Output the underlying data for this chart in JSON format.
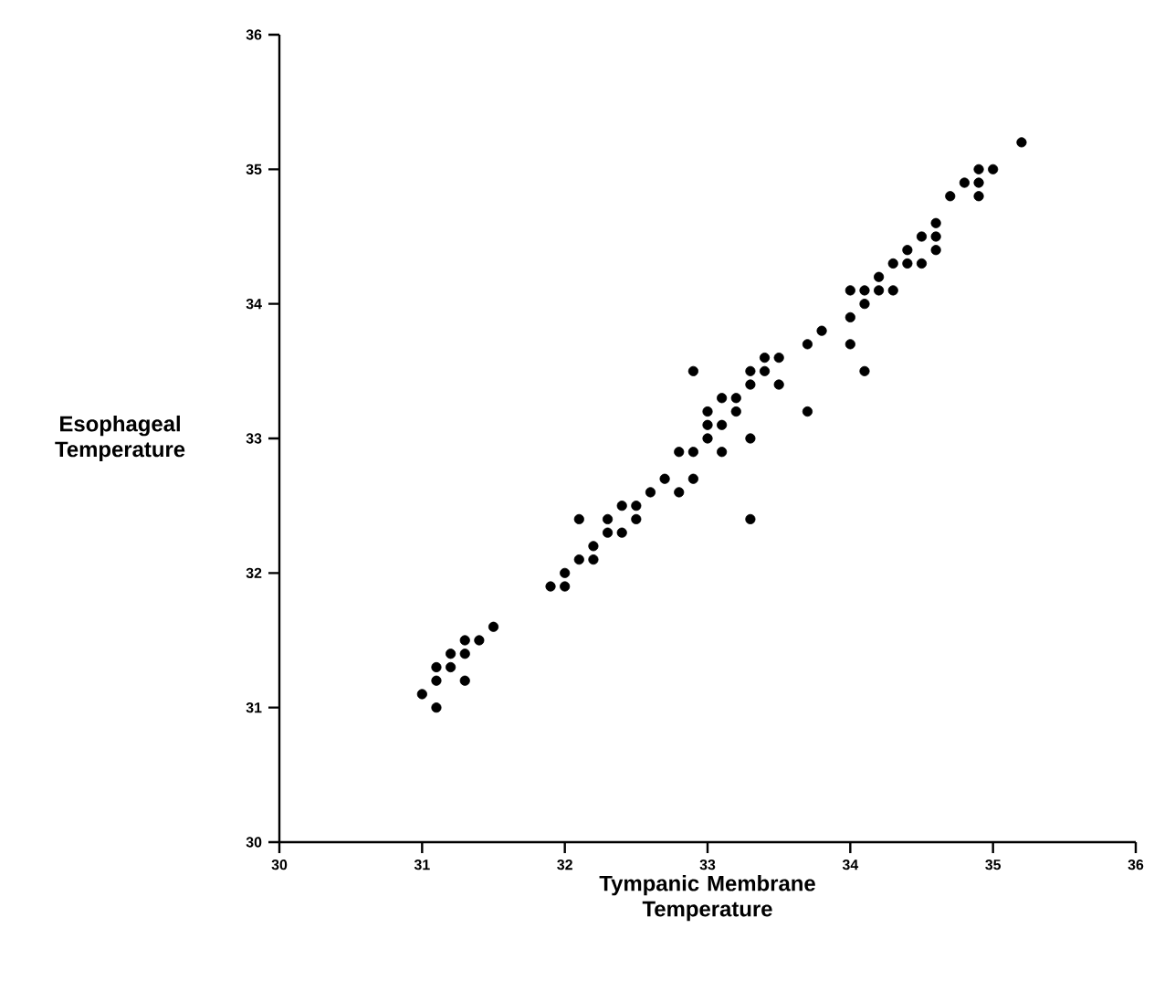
{
  "chart_data": {
    "type": "scatter",
    "xlabel": "Tympanic Membrane Temperature",
    "ylabel": "Esophageal Temperature",
    "xlim": [
      30,
      36
    ],
    "ylim": [
      30,
      36
    ],
    "xticks": [
      30,
      31,
      32,
      33,
      34,
      35,
      36
    ],
    "yticks": [
      30,
      31,
      32,
      33,
      34,
      35,
      36
    ],
    "grid": false,
    "marker": "circle",
    "series": [
      {
        "color": "#000000",
        "x": [
          31.0,
          31.1,
          31.1,
          31.1,
          31.2,
          31.2,
          31.3,
          31.3,
          31.3,
          31.4,
          31.5,
          31.9,
          32.0,
          32.0,
          32.1,
          32.1,
          32.2,
          32.2,
          32.3,
          32.3,
          32.4,
          32.4,
          32.5,
          32.5,
          32.6,
          32.7,
          32.8,
          32.8,
          32.9,
          32.9,
          32.9,
          33.0,
          33.0,
          33.0,
          33.1,
          33.1,
          33.1,
          33.2,
          33.2,
          33.3,
          33.3,
          33.3,
          33.3,
          33.4,
          33.4,
          33.5,
          33.5,
          33.7,
          33.7,
          33.8,
          34.0,
          34.0,
          34.0,
          34.1,
          34.1,
          34.1,
          34.2,
          34.2,
          34.3,
          34.3,
          34.4,
          34.4,
          34.5,
          34.5,
          34.6,
          34.6,
          34.6,
          34.7,
          34.8,
          34.9,
          34.9,
          34.9,
          35.0,
          35.2
        ],
        "values": [
          31.1,
          31.0,
          31.2,
          31.3,
          31.3,
          31.4,
          31.4,
          31.2,
          31.5,
          31.5,
          31.6,
          31.9,
          31.9,
          32.0,
          32.1,
          32.4,
          32.2,
          32.1,
          32.3,
          32.4,
          32.5,
          32.3,
          32.5,
          32.4,
          32.6,
          32.7,
          32.6,
          32.9,
          32.9,
          32.7,
          33.5,
          33.0,
          33.2,
          33.1,
          33.1,
          33.3,
          32.9,
          33.2,
          33.3,
          33.5,
          33.4,
          33.0,
          32.4,
          33.6,
          33.5,
          33.6,
          33.4,
          33.7,
          33.2,
          33.8,
          34.1,
          33.9,
          33.7,
          34.1,
          34.0,
          33.5,
          34.2,
          34.1,
          34.3,
          34.1,
          34.4,
          34.3,
          34.3,
          34.5,
          34.6,
          34.5,
          34.4,
          34.8,
          34.9,
          35.0,
          34.9,
          34.8,
          35.0,
          35.2
        ]
      }
    ]
  }
}
